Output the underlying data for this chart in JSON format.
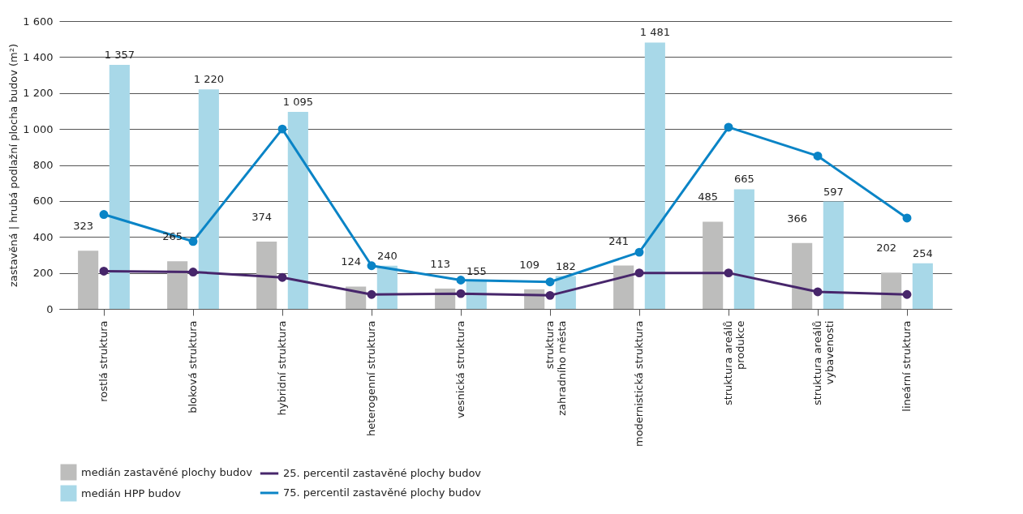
{
  "chart_data": {
    "type": "bar",
    "ylabel": "zastavěná | hrubá podlažní plocha budov (m²)",
    "categories": [
      "rostlá struktura",
      "bloková struktura",
      "hybridní struktura",
      "heterogenní struktura",
      "vesnická struktura",
      "struktura\nzahradního města",
      "modernistická struktura",
      "struktura areálů\nprodukce",
      "struktura areálů\nvybavenosti",
      "lineární struktura"
    ],
    "series": [
      {
        "name": "medián zastavěné plochy budov",
        "color": "#bdbdbc",
        "values": [
          323,
          265,
          374,
          124,
          113,
          109,
          241,
          485,
          366,
          202
        ],
        "value_labels": [
          "323",
          "265",
          "374",
          "124",
          "113",
          "109",
          "241",
          "485",
          "366",
          "202"
        ]
      },
      {
        "name": "medián HPP budov",
        "color": "#a8d8e8",
        "values": [
          1357,
          1220,
          1095,
          240,
          155,
          182,
          1481,
          665,
          597,
          254
        ],
        "value_labels": [
          "1 357",
          "1 220",
          "1 095",
          "240",
          "155",
          "182",
          "1 481",
          "665",
          "597",
          "254"
        ]
      },
      {
        "name": "25. percentil zastavěné plochy budov",
        "type": "line",
        "color": "#47266b",
        "values": [
          210,
          205,
          175,
          80,
          85,
          75,
          200,
          200,
          95,
          80
        ]
      },
      {
        "name": "75. percentil zastavěné plochy budov",
        "type": "line",
        "color": "#0a84c6",
        "values": [
          525,
          375,
          1000,
          240,
          160,
          150,
          315,
          1010,
          850,
          505
        ]
      }
    ],
    "ylim": [
      0,
      1600
    ],
    "yticks": [
      0,
      200,
      400,
      600,
      800,
      {
        "value": 1000,
        "label": "1 000"
      },
      {
        "value": 1200,
        "label": "1 200"
      },
      {
        "value": 1400,
        "label": "1 400"
      },
      {
        "value": 1600,
        "label": "1 600"
      }
    ],
    "grid": "y",
    "legend": "bottom",
    "marker": "circle",
    "line_style": "solid"
  }
}
